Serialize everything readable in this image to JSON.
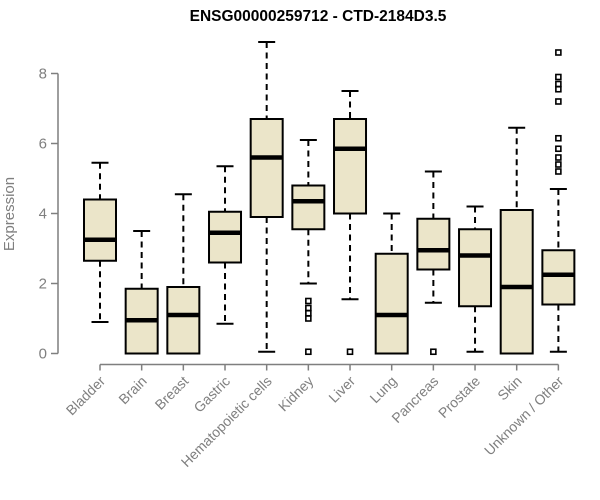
{
  "chart_data": {
    "type": "boxplot",
    "title": "ENSG00000259712 - CTD-2184D3.5",
    "ylabel": "Expression",
    "xlabel": "",
    "ylim": [
      0,
      9
    ],
    "yticks": [
      0,
      2,
      4,
      6,
      8
    ],
    "grid": false,
    "legend": "none",
    "categories": [
      "Bladder",
      "Brain",
      "Breast",
      "Gastric",
      "Hematopoietic cells",
      "Kidney",
      "Liver",
      "Lung",
      "Pancreas",
      "Prostate",
      "Skin",
      "Unknown / Other"
    ],
    "series": [
      {
        "category": "Bladder",
        "whisker_low": 0.9,
        "q1": 2.65,
        "median": 3.25,
        "q3": 4.4,
        "whisker_high": 5.45,
        "outliers": []
      },
      {
        "category": "Brain",
        "whisker_low": 0.0,
        "q1": 0.0,
        "median": 0.95,
        "q3": 1.85,
        "whisker_high": 3.5,
        "outliers": []
      },
      {
        "category": "Breast",
        "whisker_low": 0.0,
        "q1": 0.0,
        "median": 1.1,
        "q3": 1.9,
        "whisker_high": 4.55,
        "outliers": []
      },
      {
        "category": "Gastric",
        "whisker_low": 0.85,
        "q1": 2.6,
        "median": 3.45,
        "q3": 4.05,
        "whisker_high": 5.35,
        "outliers": []
      },
      {
        "category": "Hematopoietic cells",
        "whisker_low": 0.05,
        "q1": 3.9,
        "median": 5.6,
        "q3": 6.7,
        "whisker_high": 8.9,
        "outliers": []
      },
      {
        "category": "Kidney",
        "whisker_low": 2.0,
        "q1": 3.55,
        "median": 4.35,
        "q3": 4.8,
        "whisker_high": 6.1,
        "outliers": [
          1.5,
          1.3,
          1.15,
          1.0,
          0.05
        ]
      },
      {
        "category": "Liver",
        "whisker_low": 1.55,
        "q1": 4.0,
        "median": 5.85,
        "q3": 6.7,
        "whisker_high": 7.5,
        "outliers": [
          0.05
        ]
      },
      {
        "category": "Lung",
        "whisker_low": 0.0,
        "q1": 0.0,
        "median": 1.1,
        "q3": 2.85,
        "whisker_high": 4.0,
        "outliers": []
      },
      {
        "category": "Pancreas",
        "whisker_low": 1.45,
        "q1": 2.4,
        "median": 2.95,
        "q3": 3.85,
        "whisker_high": 5.2,
        "outliers": [
          0.05
        ]
      },
      {
        "category": "Prostate",
        "whisker_low": 0.05,
        "q1": 1.35,
        "median": 2.8,
        "q3": 3.55,
        "whisker_high": 4.2,
        "outliers": []
      },
      {
        "category": "Skin",
        "whisker_low": 0.0,
        "q1": 0.0,
        "median": 1.9,
        "q3": 4.1,
        "whisker_high": 6.45,
        "outliers": []
      },
      {
        "category": "Unknown / Other",
        "whisker_low": 0.05,
        "q1": 1.4,
        "median": 2.25,
        "q3": 2.95,
        "whisker_high": 4.7,
        "outliers": [
          8.6,
          7.9,
          7.7,
          7.55,
          7.2,
          6.15,
          5.85,
          5.6,
          5.4,
          5.2
        ]
      }
    ],
    "style": {
      "box_fill": "#ebe5c9",
      "box_border": "#000000",
      "median_color": "#000000",
      "outlier_fill": "#ffffff",
      "axis_color": "#7f7f7f",
      "tick_label_color": "#7f7f7f",
      "title_color": "#000000",
      "background": "#ffffff"
    }
  }
}
